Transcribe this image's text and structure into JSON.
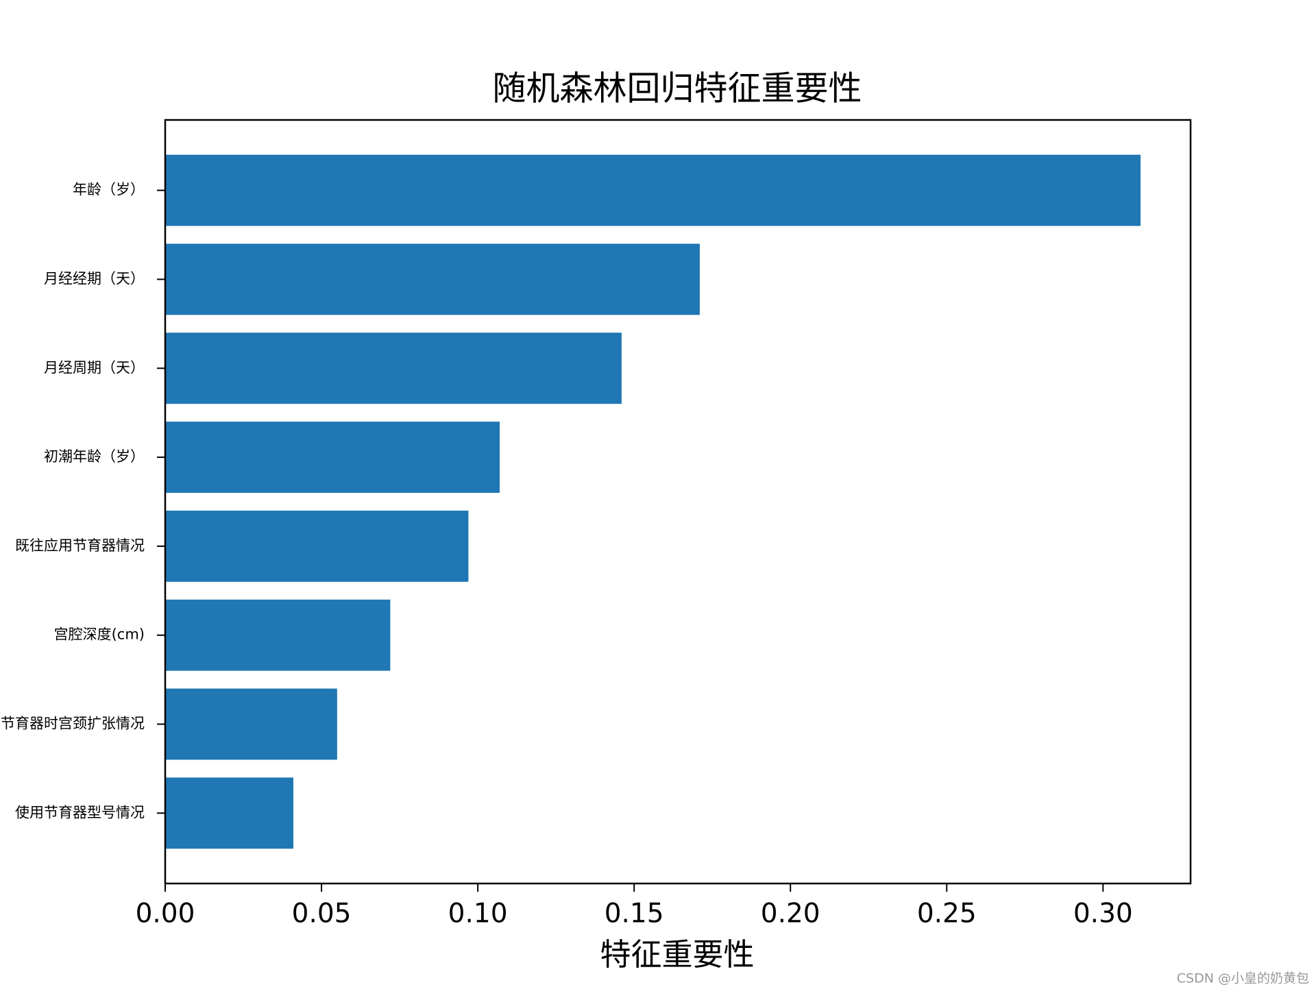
{
  "chart_data": {
    "type": "barh",
    "title": "随机森林回归特征重要性",
    "x_label": "特征重要性",
    "categories": [
      "年龄（岁）",
      "月经经期（天）",
      "月经周期（天）",
      "初潮年龄（岁）",
      "既往应用节育器情况",
      "宫腔深度(cm)",
      "节育器时宫颈扩张情况",
      "使用节育器型号情况"
    ],
    "values": [
      0.312,
      0.171,
      0.146,
      0.107,
      0.097,
      0.072,
      0.055,
      0.041
    ],
    "color": "#1f77b4",
    "xlim": [
      0,
      0.328
    ],
    "xticks": [
      {
        "value": 0,
        "label": "0.00"
      },
      0.05,
      {
        "value": 0.1,
        "label": "0.10"
      },
      0.15,
      {
        "value": 0.2,
        "label": "0.20"
      },
      0.25,
      {
        "value": 0.3,
        "label": "0.30"
      }
    ],
    "grid": false,
    "watermark": "CSDN @小皇的奶黄包"
  }
}
